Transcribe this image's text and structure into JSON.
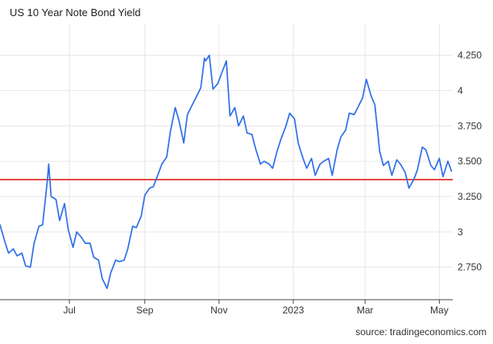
{
  "chart_data": {
    "type": "line",
    "title": "US 10 Year Note Bond Yield",
    "source": "source: tradingeconomics.com",
    "xlabel": "",
    "ylabel": "",
    "x_ticks": [
      "Jul",
      "Sep",
      "Nov",
      "2023",
      "Mar",
      "May"
    ],
    "y_ticks": [
      "4.250",
      "4",
      "3.750",
      "3.500",
      "3.250",
      "3",
      "2.750"
    ],
    "ylim": [
      2.52,
      4.47
    ],
    "xlim": [
      "2022-05-05",
      "2023-05-12"
    ],
    "grid": true,
    "legend": "none",
    "reference_line": {
      "value": 3.37
    },
    "colors": {
      "series": "#2f6fe8",
      "reference": "#e0201b",
      "grid": "#e6e6e6",
      "axis": "#444444"
    },
    "series": [
      {
        "x": [
          "2022-05-05",
          "2022-05-09",
          "2022-05-12",
          "2022-05-16",
          "2022-05-19",
          "2022-05-23",
          "2022-05-26",
          "2022-05-30",
          "2022-06-02",
          "2022-06-06",
          "2022-06-09",
          "2022-06-13",
          "2022-06-14",
          "2022-06-16",
          "2022-06-20",
          "2022-06-23",
          "2022-06-27",
          "2022-06-30",
          "2022-07-04",
          "2022-07-07",
          "2022-07-11",
          "2022-07-14",
          "2022-07-18",
          "2022-07-21",
          "2022-07-25",
          "2022-07-28",
          "2022-08-01",
          "2022-08-04",
          "2022-08-08",
          "2022-08-11",
          "2022-08-15",
          "2022-08-18",
          "2022-08-22",
          "2022-08-25",
          "2022-08-29",
          "2022-09-01",
          "2022-09-05",
          "2022-09-08",
          "2022-09-12",
          "2022-09-15",
          "2022-09-19",
          "2022-09-22",
          "2022-09-26",
          "2022-09-29",
          "2022-10-03",
          "2022-10-06",
          "2022-10-10",
          "2022-10-13",
          "2022-10-17",
          "2022-10-20",
          "2022-10-21",
          "2022-10-24",
          "2022-10-27",
          "2022-10-31",
          "2022-11-03",
          "2022-11-07",
          "2022-11-10",
          "2022-11-14",
          "2022-11-17",
          "2022-11-21",
          "2022-11-24",
          "2022-11-28",
          "2022-12-01",
          "2022-12-05",
          "2022-12-08",
          "2022-12-12",
          "2022-12-15",
          "2022-12-19",
          "2022-12-22",
          "2022-12-26",
          "2022-12-29",
          "2023-01-02",
          "2023-01-05",
          "2023-01-09",
          "2023-01-12",
          "2023-01-16",
          "2023-01-19",
          "2023-01-23",
          "2023-01-26",
          "2023-01-30",
          "2023-02-02",
          "2023-02-06",
          "2023-02-09",
          "2023-02-13",
          "2023-02-16",
          "2023-02-20",
          "2023-02-23",
          "2023-02-27",
          "2023-03-02",
          "2023-03-06",
          "2023-03-09",
          "2023-03-13",
          "2023-03-16",
          "2023-03-20",
          "2023-03-23",
          "2023-03-27",
          "2023-03-30",
          "2023-04-03",
          "2023-04-06",
          "2023-04-10",
          "2023-04-13",
          "2023-04-17",
          "2023-04-20",
          "2023-04-24",
          "2023-04-27",
          "2023-05-01",
          "2023-05-04",
          "2023-05-08",
          "2023-05-11"
        ],
        "values": [
          3.05,
          2.93,
          2.85,
          2.88,
          2.83,
          2.85,
          2.76,
          2.75,
          2.92,
          3.04,
          3.05,
          3.37,
          3.48,
          3.25,
          3.23,
          3.08,
          3.2,
          3.02,
          2.89,
          3.0,
          2.96,
          2.92,
          2.92,
          2.82,
          2.8,
          2.67,
          2.6,
          2.71,
          2.8,
          2.79,
          2.8,
          2.88,
          3.04,
          3.03,
          3.11,
          3.26,
          3.31,
          3.32,
          3.41,
          3.48,
          3.53,
          3.71,
          3.88,
          3.79,
          3.63,
          3.83,
          3.9,
          3.95,
          4.02,
          4.23,
          4.21,
          4.25,
          4.01,
          4.05,
          4.12,
          4.21,
          3.82,
          3.88,
          3.75,
          3.82,
          3.7,
          3.69,
          3.59,
          3.48,
          3.5,
          3.48,
          3.45,
          3.58,
          3.66,
          3.75,
          3.84,
          3.8,
          3.63,
          3.52,
          3.45,
          3.52,
          3.4,
          3.48,
          3.5,
          3.52,
          3.4,
          3.58,
          3.67,
          3.72,
          3.84,
          3.83,
          3.88,
          3.95,
          4.08,
          3.96,
          3.9,
          3.57,
          3.47,
          3.5,
          3.4,
          3.51,
          3.48,
          3.42,
          3.31,
          3.37,
          3.44,
          3.6,
          3.58,
          3.47,
          3.44,
          3.52,
          3.39,
          3.5,
          3.43
        ]
      }
    ]
  }
}
